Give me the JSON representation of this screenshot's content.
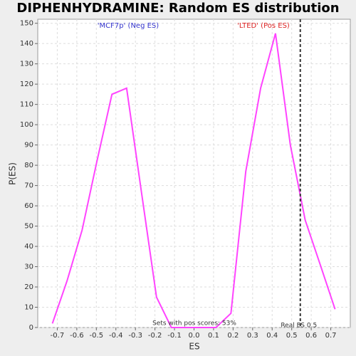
{
  "chart_data": {
    "type": "line",
    "title": "DIPHENHYDRAMINE: Random ES distribution",
    "x_label": "ES",
    "y_label": "P(ES)",
    "x": [
      -0.725,
      -0.65,
      -0.573,
      -0.497,
      -0.42,
      -0.345,
      -0.268,
      -0.192,
      -0.116,
      -0.04,
      0.036,
      0.112,
      0.189,
      0.265,
      0.341,
      0.417,
      0.493,
      0.569,
      0.646,
      0.722
    ],
    "values": [
      2,
      23,
      48,
      82,
      115,
      118,
      66,
      15,
      0,
      0,
      0,
      0,
      7,
      77,
      118,
      145,
      90,
      53,
      31,
      9
    ],
    "color": "#ff44ff",
    "xlim": [
      -0.8,
      0.8
    ],
    "ylim": [
      0,
      152
    ],
    "xticks": [
      -0.7,
      -0.6,
      -0.5,
      -0.4,
      -0.3,
      -0.2,
      -0.1,
      {
        "value": 0,
        "label": "0.0"
      },
      0.1,
      0.2,
      0.3,
      0.4,
      0.5,
      0.6,
      0.7
    ],
    "yticks": [
      0,
      10,
      20,
      30,
      40,
      50,
      60,
      70,
      80,
      90,
      100,
      110,
      120,
      130,
      140,
      150
    ],
    "grid": true,
    "neg_label": "'MCF7p' (Neg ES)",
    "neg_color": "#3333cc",
    "pos_label": "'LTED' (Pos ES)",
    "pos_color": "#dd2222",
    "pos_scores_text": "Sets with pos scores: 53%",
    "real_es": 0.544,
    "real_es_label": "Real ES 0.5"
  }
}
